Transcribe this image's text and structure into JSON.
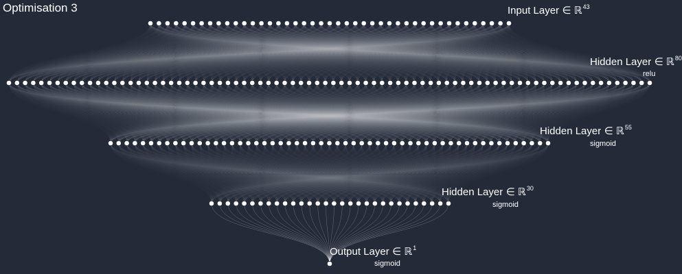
{
  "title": "Optimisation 3",
  "background": "#232a38",
  "node_color": "#ffffff",
  "edge_color": "#ffffff",
  "layers": [
    {
      "name": "Input Layer",
      "symbol": "∈ ℝ",
      "units": "43",
      "activation": ""
    },
    {
      "name": "Hidden Layer",
      "symbol": "∈ ℝ",
      "units": "80",
      "activation": "relu"
    },
    {
      "name": "Hidden Layer",
      "symbol": "∈ ℝ",
      "units": "55",
      "activation": "sigmoid"
    },
    {
      "name": "Hidden Layer",
      "symbol": "∈ ℝ",
      "units": "30",
      "activation": "sigmoid"
    },
    {
      "name": "Output Layer",
      "symbol": "∈ ℝ",
      "units": "1",
      "activation": "sigmoid"
    }
  ]
}
